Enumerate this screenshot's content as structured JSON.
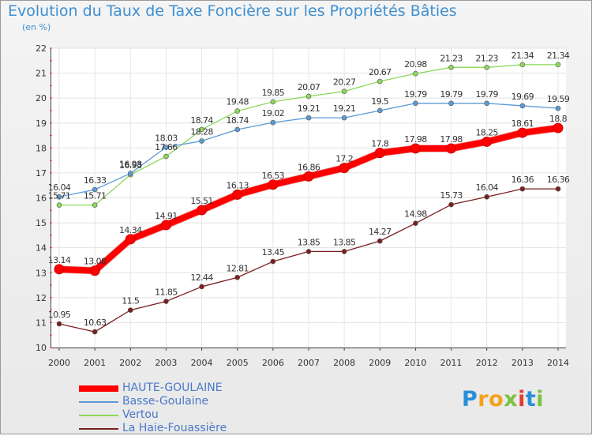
{
  "header": {
    "title": "Evolution du Taux de Taxe Foncière sur les Propriétés Bâties",
    "unit": "(en %)"
  },
  "logo": {
    "letters": [
      {
        "ch": "P",
        "color": "#2b8fd8"
      },
      {
        "ch": "r",
        "color": "#f2a21b"
      },
      {
        "ch": "o",
        "color": "#f2a21b"
      },
      {
        "ch": "x",
        "color": "#7cc242"
      },
      {
        "ch": "i",
        "color": "#e53a2f"
      },
      {
        "ch": "t",
        "color": "#2b8fd8"
      },
      {
        "ch": "i",
        "color": "#7cc242"
      }
    ]
  },
  "chart_data": {
    "type": "line",
    "x": [
      2000,
      2001,
      2002,
      2003,
      2004,
      2005,
      2006,
      2007,
      2008,
      2009,
      2010,
      2011,
      2012,
      2013,
      2014
    ],
    "ylim": [
      10,
      22
    ],
    "yticks": [
      10,
      11,
      12,
      13,
      14,
      15,
      16,
      17,
      18,
      19,
      20,
      21,
      22
    ],
    "grid": true,
    "legend_position": "bottom-left",
    "series": [
      {
        "name": "La Haie-Fouassière",
        "color": "#7a1f1f",
        "width": 1.3,
        "marker": 3,
        "values": [
          10.95,
          10.63,
          11.5,
          11.85,
          12.44,
          12.81,
          13.45,
          13.85,
          13.85,
          14.27,
          14.98,
          15.73,
          16.04,
          16.36,
          16.36
        ]
      },
      {
        "name": "Vertou",
        "color": "#8cd85a",
        "width": 1.3,
        "marker": 3,
        "values": [
          15.71,
          15.71,
          16.93,
          17.66,
          18.74,
          19.48,
          19.85,
          20.07,
          20.27,
          20.67,
          20.98,
          21.23,
          21.23,
          21.34,
          21.34
        ]
      },
      {
        "name": "Basse-Goulaine",
        "color": "#5b9bd5",
        "width": 1.3,
        "marker": 3,
        "values": [
          16.04,
          16.33,
          16.98,
          18.03,
          18.28,
          18.74,
          19.02,
          19.21,
          19.21,
          19.5,
          19.79,
          19.79,
          19.79,
          19.69,
          19.59
        ]
      },
      {
        "name": "HAUTE-GOULAINE",
        "color": "#ff0000",
        "width": 8,
        "marker": 6,
        "values": [
          13.14,
          13.08,
          14.34,
          14.91,
          15.51,
          16.13,
          16.53,
          16.86,
          17.2,
          17.8,
          17.98,
          17.98,
          18.25,
          18.61,
          18.8
        ]
      }
    ],
    "data_labels": [
      {
        "x": 2000,
        "text": "10.95",
        "y": 10.95
      },
      {
        "x": 2001,
        "text": "10.63",
        "y": 10.63
      },
      {
        "x": 2002,
        "text": "11.5",
        "y": 11.5
      },
      {
        "x": 2003,
        "text": "11.85",
        "y": 11.85
      },
      {
        "x": 2004,
        "text": "12.44",
        "y": 12.44
      },
      {
        "x": 2005,
        "text": "12.81",
        "y": 12.81
      },
      {
        "x": 2006,
        "text": "13.45",
        "y": 13.45
      },
      {
        "x": 2007,
        "text": "13.85",
        "y": 13.85
      },
      {
        "x": 2008,
        "text": "13.85",
        "y": 13.85
      },
      {
        "x": 2009,
        "text": "14.27",
        "y": 14.27
      },
      {
        "x": 2010,
        "text": "14.98",
        "y": 14.98
      },
      {
        "x": 2011,
        "text": "15.73",
        "y": 15.73
      },
      {
        "x": 2012,
        "text": "16.04",
        "y": 16.04
      },
      {
        "x": 2013,
        "text": "16.36",
        "y": 16.36
      },
      {
        "x": 2014,
        "text": "16.36",
        "y": 16.36
      },
      {
        "x": 2000,
        "text": "13.14",
        "y": 13.14
      },
      {
        "x": 2001,
        "text": "13.08",
        "y": 13.08
      },
      {
        "x": 2002,
        "text": "14.34",
        "y": 14.34
      },
      {
        "x": 2003,
        "text": "14.91",
        "y": 14.91
      },
      {
        "x": 2004,
        "text": "15.51",
        "y": 15.51
      },
      {
        "x": 2005,
        "text": "16.13",
        "y": 16.13
      },
      {
        "x": 2006,
        "text": "16.53",
        "y": 16.53
      },
      {
        "x": 2007,
        "text": "16.86",
        "y": 16.86
      },
      {
        "x": 2008,
        "text": "17.2",
        "y": 17.2
      },
      {
        "x": 2009,
        "text": "17.8",
        "y": 17.8
      },
      {
        "x": 2010,
        "text": "17.98",
        "y": 17.98
      },
      {
        "x": 2011,
        "text": "17.98",
        "y": 17.98
      },
      {
        "x": 2012,
        "text": "18.25",
        "y": 18.25
      },
      {
        "x": 2013,
        "text": "18.61",
        "y": 18.61
      },
      {
        "x": 2014,
        "text": "18.8",
        "y": 18.8
      },
      {
        "x": 2000,
        "text": "16.04",
        "y": 16.04
      },
      {
        "x": 2001,
        "text": "16.33",
        "y": 16.33
      },
      {
        "x": 2002,
        "text": "16.98",
        "y": 16.98
      },
      {
        "x": 2003,
        "text": "18.03",
        "y": 18.03
      },
      {
        "x": 2004,
        "text": "18.28",
        "y": 18.28
      },
      {
        "x": 2005,
        "text": "18.74",
        "y": 18.74
      },
      {
        "x": 2006,
        "text": "19.02",
        "y": 19.02
      },
      {
        "x": 2007,
        "text": "19.21",
        "y": 19.21
      },
      {
        "x": 2008,
        "text": "19.21",
        "y": 19.21
      },
      {
        "x": 2009,
        "text": "19.5",
        "y": 19.5
      },
      {
        "x": 2010,
        "text": "19.79",
        "y": 19.79
      },
      {
        "x": 2011,
        "text": "19.79",
        "y": 19.79
      },
      {
        "x": 2012,
        "text": "19.79",
        "y": 19.79
      },
      {
        "x": 2013,
        "text": "19.69",
        "y": 19.69
      },
      {
        "x": 2014,
        "text": "19.59",
        "y": 19.59
      },
      {
        "x": 2000,
        "text": "15.71",
        "y": 15.71
      },
      {
        "x": 2001,
        "text": "15.71",
        "y": 15.71
      },
      {
        "x": 2002,
        "text": "16.93",
        "y": 16.93
      },
      {
        "x": 2003,
        "text": "17.66",
        "y": 17.66
      },
      {
        "x": 2004,
        "text": "18.74",
        "y": 18.74
      },
      {
        "x": 2005,
        "text": "19.48",
        "y": 19.48
      },
      {
        "x": 2006,
        "text": "19.85",
        "y": 19.85
      },
      {
        "x": 2007,
        "text": "20.07",
        "y": 20.07
      },
      {
        "x": 2008,
        "text": "20.27",
        "y": 20.27
      },
      {
        "x": 2009,
        "text": "20.67",
        "y": 20.67
      },
      {
        "x": 2010,
        "text": "20.98",
        "y": 20.98
      },
      {
        "x": 2011,
        "text": "21.23",
        "y": 21.23
      },
      {
        "x": 2012,
        "text": "21.23",
        "y": 21.23
      },
      {
        "x": 2013,
        "text": "21.34",
        "y": 21.34
      },
      {
        "x": 2014,
        "text": "21.34",
        "y": 21.34
      }
    ],
    "legend": [
      {
        "label": "HAUTE-GOULAINE",
        "color": "#ff0000",
        "thickness": 8
      },
      {
        "label": "Basse-Goulaine",
        "color": "#5b9bd5",
        "thickness": 2
      },
      {
        "label": "Vertou",
        "color": "#8cd85a",
        "thickness": 2
      },
      {
        "label": "La Haie-Fouassière",
        "color": "#7a1f1f",
        "thickness": 2
      }
    ]
  }
}
